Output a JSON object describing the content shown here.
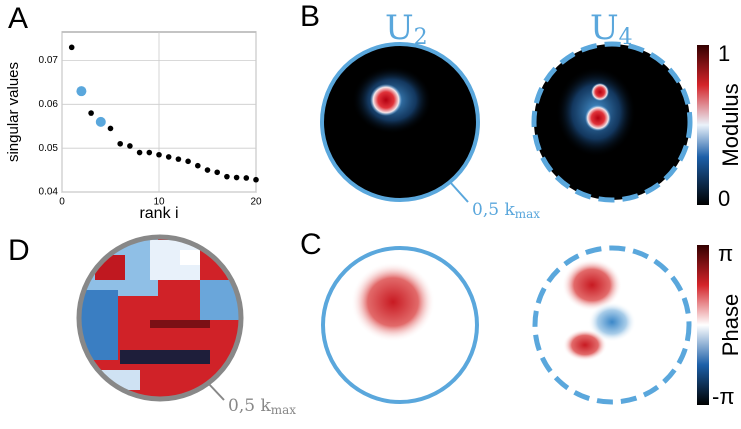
{
  "chart_data": {
    "type": "scatter",
    "xlabel": "rank i",
    "ylabel": "singular values",
    "x": [
      1,
      2,
      3,
      4,
      5,
      6,
      7,
      8,
      9,
      10,
      11,
      12,
      13,
      14,
      15,
      16,
      17,
      18,
      19,
      20
    ],
    "values": [
      0.073,
      0.063,
      0.058,
      0.056,
      0.0545,
      0.051,
      0.0505,
      0.049,
      0.049,
      0.0485,
      0.048,
      0.0475,
      0.047,
      0.046,
      0.045,
      0.0445,
      0.0435,
      0.0433,
      0.0432,
      0.0428
    ],
    "point_colors": [
      "#000000",
      "#5aa7dc",
      "#000000",
      "#5aa7dc",
      "#000000",
      "#000000",
      "#000000",
      "#000000",
      "#000000",
      "#000000",
      "#000000",
      "#000000",
      "#000000",
      "#000000",
      "#000000",
      "#000000",
      "#000000",
      "#000000",
      "#000000",
      "#000000"
    ],
    "xlim": [
      0,
      20
    ],
    "xticks": [
      0,
      10,
      20
    ],
    "ylim": [
      0.04,
      0.0765
    ],
    "yticks": [
      0.04,
      0.05,
      0.06,
      0.07
    ],
    "grid": true
  },
  "panels": {
    "a": "A",
    "b": "B",
    "c": "C",
    "d": "D"
  },
  "modes": [
    {
      "main": "U",
      "sub": "2"
    },
    {
      "main": "U",
      "sub": "4"
    }
  ],
  "radius_label": {
    "main": "0,5 k",
    "sub": "max"
  },
  "modulus_bar": {
    "label": "Modulus",
    "top": "1",
    "bottom": "0"
  },
  "phase_bar": {
    "label": "Phase",
    "top": "π",
    "bottom": "-π"
  }
}
